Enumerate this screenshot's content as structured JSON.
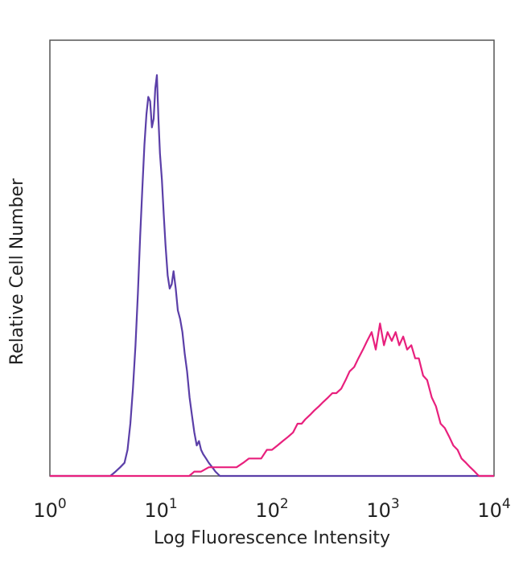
{
  "chart_data": {
    "type": "line",
    "title": "",
    "xlabel": "Log Fluorescence Intensity",
    "ylabel": "Relative Cell Number",
    "x_scale": "log",
    "xlim": [
      1,
      10000
    ],
    "ylim": [
      0,
      100
    ],
    "x_ticks": [
      {
        "base": "10",
        "exp": "0",
        "value": 1
      },
      {
        "base": "10",
        "exp": "1",
        "value": 10
      },
      {
        "base": "10",
        "exp": "2",
        "value": 100
      },
      {
        "base": "10",
        "exp": "3",
        "value": 1000
      },
      {
        "base": "10",
        "exp": "4",
        "value": 10000
      }
    ],
    "y_ticks": [],
    "grid": false,
    "legend": "none",
    "series": [
      {
        "color": "#5b3fa8",
        "points": [
          [
            1,
            0
          ],
          [
            3.5,
            0
          ],
          [
            3.9,
            1
          ],
          [
            4.3,
            2
          ],
          [
            4.7,
            3
          ],
          [
            5.0,
            6
          ],
          [
            5.3,
            12
          ],
          [
            5.6,
            20
          ],
          [
            5.9,
            30
          ],
          [
            6.2,
            42
          ],
          [
            6.5,
            55
          ],
          [
            6.8,
            66
          ],
          [
            7.1,
            76
          ],
          [
            7.4,
            83
          ],
          [
            7.7,
            87
          ],
          [
            8.0,
            86
          ],
          [
            8.3,
            80
          ],
          [
            8.6,
            82
          ],
          [
            8.9,
            89
          ],
          [
            9.2,
            92
          ],
          [
            9.5,
            82
          ],
          [
            9.8,
            74
          ],
          [
            10.2,
            68
          ],
          [
            10.6,
            60
          ],
          [
            11.0,
            53
          ],
          [
            11.5,
            46
          ],
          [
            12.0,
            43
          ],
          [
            12.5,
            44
          ],
          [
            13.0,
            47
          ],
          [
            13.6,
            43
          ],
          [
            14.2,
            38
          ],
          [
            14.9,
            36
          ],
          [
            15.6,
            33
          ],
          [
            16.4,
            28
          ],
          [
            17.2,
            24
          ],
          [
            18.1,
            18
          ],
          [
            19.0,
            14
          ],
          [
            20.0,
            10
          ],
          [
            21.0,
            7
          ],
          [
            22.0,
            8
          ],
          [
            23.0,
            6
          ],
          [
            24.0,
            5
          ],
          [
            25.5,
            4
          ],
          [
            27.0,
            3
          ],
          [
            29.0,
            2
          ],
          [
            31.0,
            1
          ],
          [
            34.0,
            0
          ],
          [
            10000,
            0
          ]
        ]
      },
      {
        "color": "#e8207d",
        "points": [
          [
            1,
            0
          ],
          [
            18,
            0
          ],
          [
            20,
            1
          ],
          [
            23,
            1
          ],
          [
            27,
            2
          ],
          [
            31,
            2
          ],
          [
            36,
            2
          ],
          [
            42,
            2
          ],
          [
            48,
            2
          ],
          [
            55,
            3
          ],
          [
            62,
            4
          ],
          [
            70,
            4
          ],
          [
            80,
            4
          ],
          [
            90,
            6
          ],
          [
            100,
            6
          ],
          [
            112,
            7
          ],
          [
            125,
            8
          ],
          [
            140,
            9
          ],
          [
            155,
            10
          ],
          [
            170,
            12
          ],
          [
            185,
            12
          ],
          [
            200,
            13
          ],
          [
            220,
            14
          ],
          [
            240,
            15
          ],
          [
            265,
            16
          ],
          [
            290,
            17
          ],
          [
            320,
            18
          ],
          [
            350,
            19
          ],
          [
            380,
            19
          ],
          [
            420,
            20
          ],
          [
            460,
            22
          ],
          [
            500,
            24
          ],
          [
            550,
            25
          ],
          [
            600,
            27
          ],
          [
            660,
            29
          ],
          [
            720,
            31
          ],
          [
            790,
            33
          ],
          [
            860,
            29
          ],
          [
            940,
            35
          ],
          [
            1020,
            30
          ],
          [
            1100,
            33
          ],
          [
            1200,
            31
          ],
          [
            1300,
            33
          ],
          [
            1400,
            30
          ],
          [
            1520,
            32
          ],
          [
            1650,
            29
          ],
          [
            1800,
            30
          ],
          [
            1950,
            27
          ],
          [
            2100,
            27
          ],
          [
            2300,
            23
          ],
          [
            2500,
            22
          ],
          [
            2750,
            18
          ],
          [
            3000,
            16
          ],
          [
            3300,
            12
          ],
          [
            3600,
            11
          ],
          [
            3950,
            9
          ],
          [
            4300,
            7
          ],
          [
            4700,
            6
          ],
          [
            5100,
            4
          ],
          [
            5600,
            3
          ],
          [
            6100,
            2
          ],
          [
            6700,
            1
          ],
          [
            7300,
            0
          ],
          [
            10000,
            0
          ]
        ]
      }
    ]
  }
}
